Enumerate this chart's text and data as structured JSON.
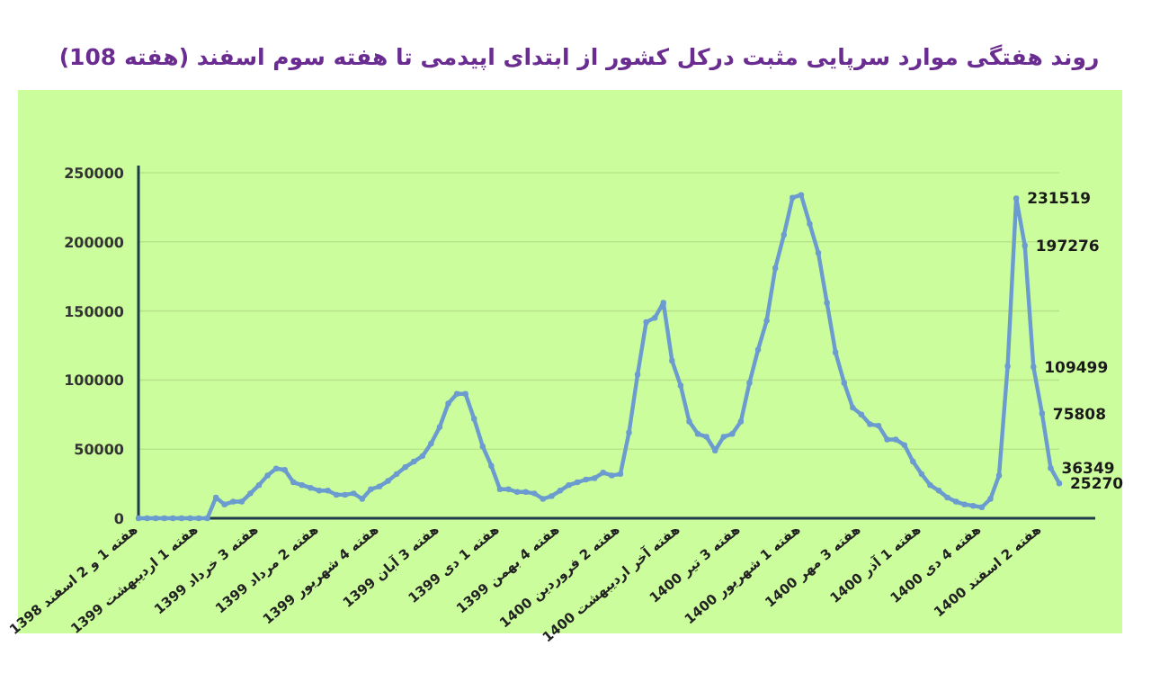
{
  "chart_data": {
    "type": "line",
    "title": "روند هفتگی موارد سرپایی مثبت درکل کشور از ابتدای اپیدمی تا هفته سوم اسفند (هفته 108)",
    "categories": [
      "هفته 1 و 2 اسفند 1398",
      null,
      null,
      null,
      null,
      null,
      null,
      "هفته 1 اردیبهشت 1399",
      null,
      null,
      null,
      null,
      null,
      null,
      "هفته 3 خرداد 1399",
      null,
      null,
      null,
      null,
      null,
      null,
      "هفته 2 مرداد 1399",
      null,
      null,
      null,
      null,
      null,
      null,
      "هفته 4 شهریور 1399",
      null,
      null,
      null,
      null,
      null,
      null,
      "هفته 3 آبان 1399",
      null,
      null,
      null,
      null,
      null,
      null,
      "هفته 1 دی 1399",
      null,
      null,
      null,
      null,
      null,
      null,
      "هفته 4 بهمن 1399",
      null,
      null,
      null,
      null,
      null,
      null,
      "هفته 2 فروردین 1400",
      null,
      null,
      null,
      null,
      null,
      null,
      "هفته آخر اردیبهشت 1400",
      null,
      null,
      null,
      null,
      null,
      null,
      "هفته 3 تیر 1400",
      null,
      null,
      null,
      null,
      null,
      null,
      "هفته 1 شهریور 1400",
      null,
      null,
      null,
      null,
      null,
      null,
      "هفته 3 مهر 1400",
      null,
      null,
      null,
      null,
      null,
      null,
      "هفته 1 آذر 1400",
      null,
      null,
      null,
      null,
      null,
      null,
      "هفته 4 دی 1400",
      null,
      null,
      null,
      null,
      null,
      null,
      "هفته 2 اسفند 1400",
      null,
      null
    ],
    "series": [
      {
        "color": "#6b9bcf",
        "values": [
          0,
          0,
          0,
          0,
          0,
          0,
          0,
          0,
          0,
          15000,
          10000,
          12000,
          12000,
          18000,
          24000,
          31000,
          36000,
          35000,
          26000,
          24000,
          22000,
          20000,
          20000,
          17000,
          17000,
          18000,
          14000,
          21000,
          23000,
          27000,
          32000,
          37000,
          41000,
          45000,
          54000,
          66000,
          83000,
          90000,
          90000,
          72000,
          52000,
          38000,
          21000,
          21000,
          19000,
          19000,
          18000,
          14000,
          16000,
          20000,
          24000,
          26000,
          28000,
          29000,
          33000,
          31000,
          32000,
          62000,
          104000,
          142000,
          145000,
          156000,
          114000,
          96000,
          70000,
          61000,
          59000,
          49000,
          59000,
          61000,
          70000,
          98000,
          122000,
          143000,
          181000,
          205000,
          232000,
          234000,
          213000,
          192000,
          156000,
          120000,
          98000,
          80000,
          75000,
          68000,
          67000,
          57000,
          57000,
          53000,
          41000,
          32000,
          24000,
          20000,
          15000,
          12000,
          10000,
          9000,
          8000,
          14000,
          31000,
          110000,
          231519,
          197276,
          109499,
          75808,
          36349,
          25270
        ],
        "value_labels": [
          null,
          null,
          null,
          null,
          null,
          null,
          null,
          null,
          null,
          null,
          null,
          null,
          null,
          null,
          null,
          null,
          null,
          null,
          null,
          null,
          null,
          null,
          null,
          null,
          null,
          null,
          null,
          null,
          null,
          null,
          null,
          null,
          null,
          null,
          null,
          null,
          null,
          null,
          null,
          null,
          null,
          null,
          null,
          null,
          null,
          null,
          null,
          null,
          null,
          null,
          null,
          null,
          null,
          null,
          null,
          null,
          null,
          null,
          null,
          null,
          null,
          null,
          null,
          null,
          null,
          null,
          null,
          null,
          null,
          null,
          null,
          null,
          null,
          null,
          null,
          null,
          null,
          null,
          null,
          null,
          null,
          null,
          null,
          null,
          null,
          null,
          null,
          null,
          null,
          null,
          null,
          null,
          null,
          null,
          null,
          null,
          null,
          null,
          null,
          null,
          null,
          null,
          "231519",
          "197276",
          "109499",
          "75808",
          "36349",
          "25270"
        ]
      }
    ],
    "ylim": [
      0,
      250000
    ],
    "yticks": [
      0,
      50000,
      100000,
      150000,
      200000,
      250000
    ],
    "grid": "y",
    "marker": "circle"
  }
}
